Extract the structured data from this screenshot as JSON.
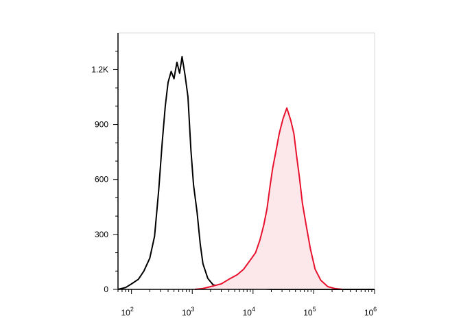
{
  "chart_data": {
    "type": "area",
    "title": "",
    "xlabel": "",
    "ylabel": "",
    "x_scale": "log",
    "xlim": [
      60,
      1000000
    ],
    "ylim": [
      0,
      1400
    ],
    "grid": false,
    "x_ticks": [
      {
        "value": 100,
        "base": "10",
        "exp": "2"
      },
      {
        "value": 1000,
        "base": "10",
        "exp": "3"
      },
      {
        "value": 10000,
        "base": "10",
        "exp": "4"
      },
      {
        "value": 100000,
        "base": "10",
        "exp": "5"
      },
      {
        "value": 1000000,
        "base": "10",
        "exp": "6"
      }
    ],
    "y_ticks": [
      {
        "value": 0,
        "label": "0"
      },
      {
        "value": 300,
        "label": "300"
      },
      {
        "value": 600,
        "label": "600"
      },
      {
        "value": 900,
        "label": "900"
      },
      {
        "value": 1200,
        "label": "1.2K"
      }
    ],
    "series": [
      {
        "color": "#000000",
        "fill": "none",
        "points": [
          [
            60,
            0
          ],
          [
            80,
            10
          ],
          [
            100,
            30
          ],
          [
            130,
            55
          ],
          [
            160,
            100
          ],
          [
            200,
            170
          ],
          [
            240,
            290
          ],
          [
            280,
            540
          ],
          [
            320,
            800
          ],
          [
            360,
            1000
          ],
          [
            400,
            1130
          ],
          [
            450,
            1190
          ],
          [
            500,
            1150
          ],
          [
            560,
            1240
          ],
          [
            620,
            1180
          ],
          [
            680,
            1270
          ],
          [
            760,
            1170
          ],
          [
            850,
            1050
          ],
          [
            950,
            760
          ],
          [
            1050,
            570
          ],
          [
            1200,
            420
          ],
          [
            1350,
            250
          ],
          [
            1500,
            140
          ],
          [
            1800,
            60
          ],
          [
            2200,
            25
          ],
          [
            3000,
            15
          ],
          [
            4500,
            10
          ],
          [
            7000,
            12
          ],
          [
            9500,
            20
          ],
          [
            11000,
            8
          ],
          [
            14000,
            3
          ],
          [
            20000,
            0
          ],
          [
            200000,
            0
          ],
          [
            1000000,
            0
          ]
        ]
      },
      {
        "color": "#e8112d",
        "fill": "#fce8ea",
        "points": [
          [
            1100,
            0
          ],
          [
            1500,
            5
          ],
          [
            2000,
            15
          ],
          [
            3000,
            30
          ],
          [
            4000,
            55
          ],
          [
            5500,
            80
          ],
          [
            7000,
            110
          ],
          [
            9000,
            160
          ],
          [
            11000,
            200
          ],
          [
            13000,
            270
          ],
          [
            15000,
            350
          ],
          [
            17000,
            440
          ],
          [
            19000,
            560
          ],
          [
            21000,
            660
          ],
          [
            24000,
            760
          ],
          [
            27000,
            850
          ],
          [
            31000,
            930
          ],
          [
            36000,
            990
          ],
          [
            42000,
            920
          ],
          [
            47000,
            850
          ],
          [
            52000,
            730
          ],
          [
            58000,
            610
          ],
          [
            65000,
            470
          ],
          [
            75000,
            350
          ],
          [
            88000,
            220
          ],
          [
            105000,
            110
          ],
          [
            130000,
            50
          ],
          [
            170000,
            15
          ],
          [
            220000,
            5
          ],
          [
            300000,
            0
          ]
        ]
      }
    ]
  }
}
